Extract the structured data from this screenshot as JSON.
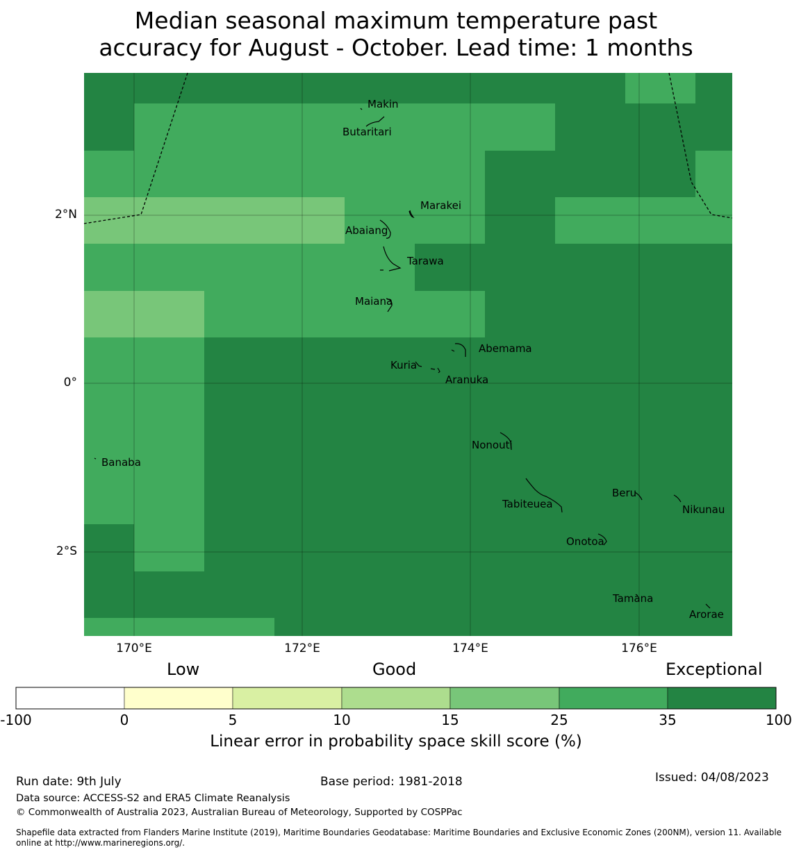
{
  "title": {
    "line1": "Median seasonal maximum temperature past",
    "line2": "accuracy for August - October. Lead time: 1 months"
  },
  "axes": {
    "x_ticks": [
      "170°E",
      "172°E",
      "174°E",
      "176°E"
    ],
    "y_ticks": [
      "2°N",
      "0°",
      "2°S"
    ]
  },
  "places": [
    {
      "name": "Makin"
    },
    {
      "name": "Butaritari"
    },
    {
      "name": "Marakei"
    },
    {
      "name": "Abaiang"
    },
    {
      "name": "Tarawa"
    },
    {
      "name": "Maiana"
    },
    {
      "name": "Abemama"
    },
    {
      "name": "Kuria"
    },
    {
      "name": "Aranuka"
    },
    {
      "name": "Banaba"
    },
    {
      "name": "Nonouti"
    },
    {
      "name": "Beru"
    },
    {
      "name": "Tabiteuea"
    },
    {
      "name": "Nikunau"
    },
    {
      "name": "Onotoa"
    },
    {
      "name": "Tamana"
    },
    {
      "name": "Arorae"
    }
  ],
  "legend": {
    "categories": [
      "Low",
      "Good",
      "Exceptional"
    ],
    "bins": [
      {
        "from": -100,
        "to": 0,
        "color": "#ffffff"
      },
      {
        "from": 0,
        "to": 5,
        "color": "#ffffcc"
      },
      {
        "from": 5,
        "to": 10,
        "color": "#d9f0a3"
      },
      {
        "from": 10,
        "to": 15,
        "color": "#addd8e"
      },
      {
        "from": 15,
        "to": 25,
        "color": "#78c679"
      },
      {
        "from": 25,
        "to": 35,
        "color": "#41ab5d"
      },
      {
        "from": 35,
        "to": 100,
        "color": "#238443"
      }
    ],
    "tick_labels": [
      "-100",
      "0",
      "5",
      "10",
      "15",
      "25",
      "35",
      "100"
    ],
    "label": "Linear error in probability space skill score (%)"
  },
  "footer": {
    "run_date": "Run date: 9th July",
    "base_period": "Base period: 1981-2018",
    "issued": "Issued: 04/08/2023",
    "data_source": "Data source: ACCESS-S2 and ERA5 Climate Reanalysis",
    "copyright": "© Commonwealth of Australia 2023, Australian Bureau of Meteorology, Supported by COSPPac",
    "shapefile1": "Shapefile data extracted from Flanders Marine Institute (2019), Maritime Boundaries Geodatabase: Maritime Boundaries and Exclusive Economic Zones (200NM), version 11. Available",
    "shapefile2": "online at http://www.marineregions.org/."
  }
}
